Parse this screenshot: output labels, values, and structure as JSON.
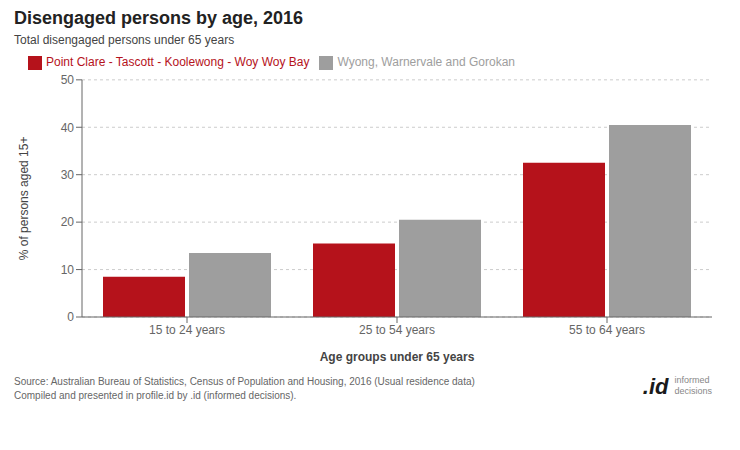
{
  "chart_data": {
    "type": "bar",
    "title": "Disengaged persons by age, 2016",
    "subtitle": "Total disengaged persons under 65 years",
    "categories": [
      "15 to 24 years",
      "25 to 54 years",
      "55 to 64 years"
    ],
    "series": [
      {
        "name": "Point Clare - Tascott - Koolewong - Woy Woy Bay",
        "color": "#b5121b",
        "values": [
          8.5,
          15.5,
          32.5
        ]
      },
      {
        "name": "Wyong, Warnervale and Gorokan",
        "color": "#9e9e9e",
        "values": [
          13.5,
          20.5,
          40.5
        ]
      }
    ],
    "xlabel": "Age groups under 65 years",
    "ylabel": "% of persons aged 15+",
    "ylim": [
      0,
      50
    ],
    "yticks": [
      0,
      10,
      20,
      30,
      40,
      50
    ],
    "grid": true,
    "legend": "upper left",
    "annotations": [
      "Source: Australian Bureau of Statistics, Census of Population and Housing, 2016 (Usual residence data)\nCompiled and presented in profile.id by .id (informed decisions).",
      ".id",
      "informed\ndecisions"
    ]
  }
}
